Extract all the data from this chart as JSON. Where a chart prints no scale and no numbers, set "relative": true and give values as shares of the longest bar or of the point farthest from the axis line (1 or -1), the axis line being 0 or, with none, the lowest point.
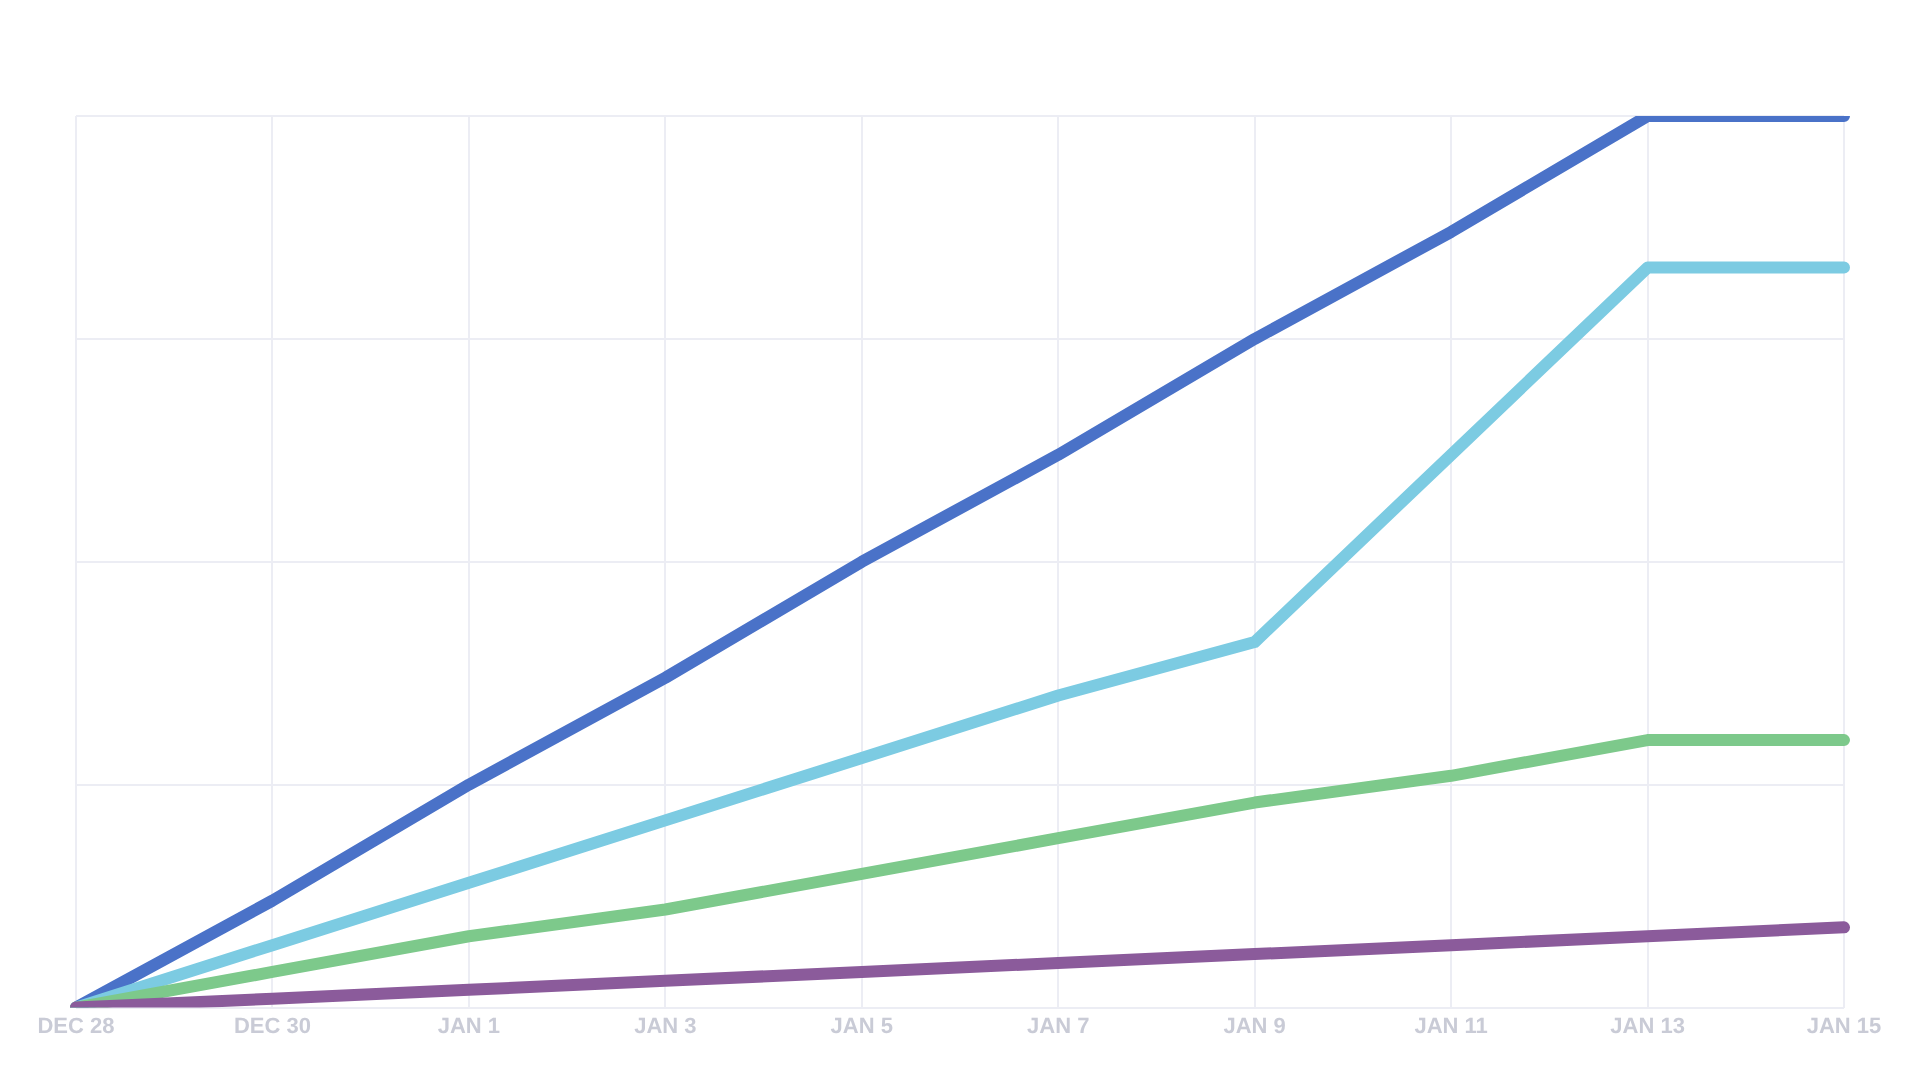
{
  "chart_data": {
    "type": "line",
    "relative": true,
    "grid": true,
    "legend": false,
    "marker": "none",
    "line_style": "solid",
    "categories": [
      "DEC 28",
      "DEC 30",
      "JAN 1",
      "JAN 3",
      "JAN 5",
      "JAN 7",
      "JAN 9",
      "JAN 11",
      "JAN 13",
      "JAN 15"
    ],
    "series": [
      {
        "color": "#4a72c8",
        "values": [
          0,
          0.12,
          0.25,
          0.37,
          0.5,
          0.62,
          0.75,
          0.87,
          1,
          1
        ]
      },
      {
        "color": "#7ccbe2",
        "values": [
          0,
          0.07,
          0.14,
          0.21,
          0.28,
          0.35,
          0.41,
          0.62,
          0.83,
          0.83
        ]
      },
      {
        "color": "#7dc98b",
        "values": [
          0,
          0.04,
          0.08,
          0.11,
          0.15,
          0.19,
          0.23,
          0.26,
          0.3,
          0.3
        ]
      },
      {
        "color": "#8b5b9b",
        "values": [
          0,
          0.01,
          0.02,
          0.03,
          0.04,
          0.05,
          0.06,
          0.07,
          0.08,
          0.09
        ]
      }
    ]
  }
}
